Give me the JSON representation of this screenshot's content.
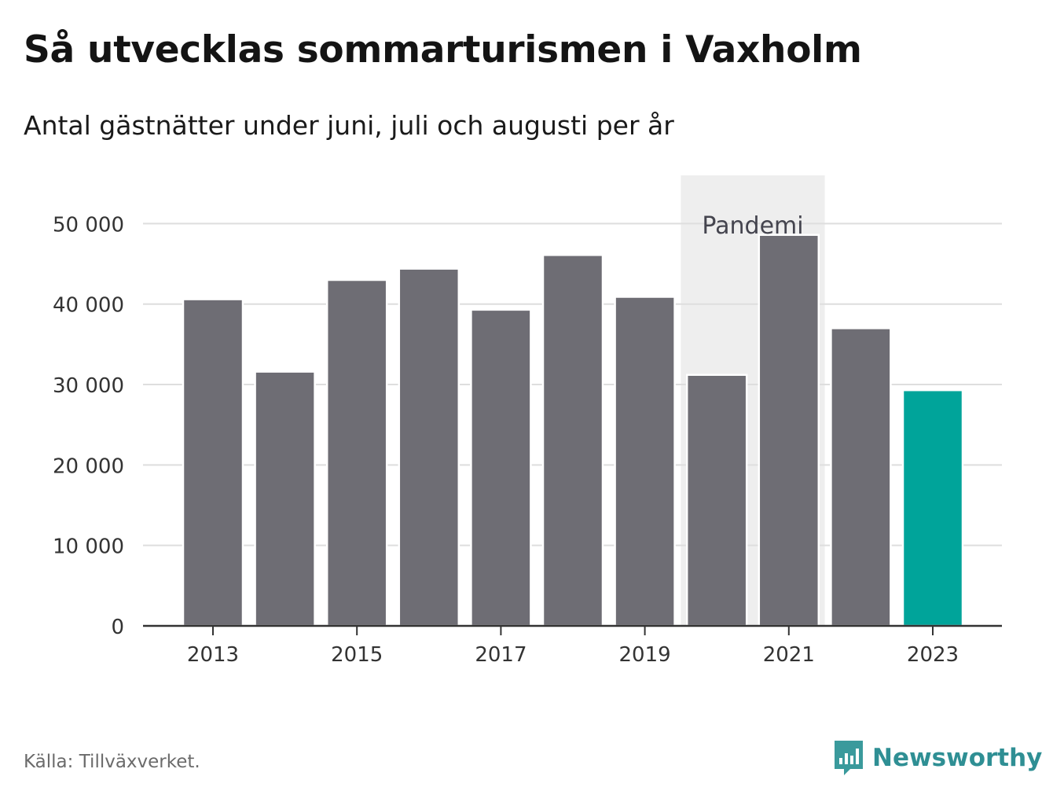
{
  "title": "Så utvecklas sommarturismen i Vaxholm",
  "subtitle": "Antal gästnätter under juni, juli och augusti per år",
  "source": "Källa: Tillväxverket.",
  "brand": {
    "name": "Newsworthy",
    "icon": "newsworthy-logo-icon",
    "color": "#3a9a9c"
  },
  "chart_data": {
    "type": "bar",
    "categories": [
      "2013",
      "2014",
      "2015",
      "2016",
      "2017",
      "2018",
      "2019",
      "2020",
      "2021",
      "2022",
      "2023"
    ],
    "values": [
      40600,
      31600,
      43000,
      44400,
      39300,
      46100,
      40900,
      31200,
      48600,
      37000,
      29300
    ],
    "x_tick_labels": [
      "2013",
      "2015",
      "2017",
      "2019",
      "2021",
      "2023"
    ],
    "y_ticks": [
      0,
      10000,
      20000,
      30000,
      40000,
      50000
    ],
    "y_tick_labels": [
      "0",
      "10 000",
      "20 000",
      "30 000",
      "40 000",
      "50 000"
    ],
    "ylim": [
      0,
      56000
    ],
    "grid": true,
    "bar_color": "#6e6d74",
    "highlight_color": "#00a49a",
    "highlight_category": "2023",
    "annotation": {
      "label": "Pandemi",
      "from": "2020",
      "to": "2021",
      "color": "#eeeeee"
    }
  }
}
